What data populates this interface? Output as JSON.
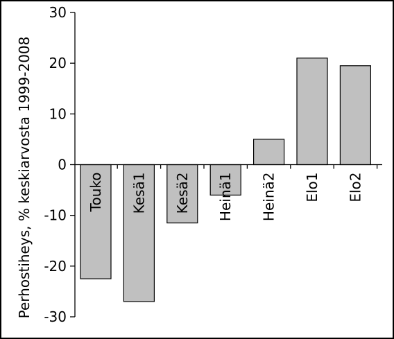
{
  "chart_data": {
    "type": "bar",
    "title": "",
    "xlabel": "",
    "ylabel": "Perhostiheys, % keskiarvosta 1999-2008",
    "categories": [
      "Touko",
      "Kesä1",
      "Kesä2",
      "Heinä1",
      "Heinä2",
      "Elo1",
      "Elo2"
    ],
    "values": [
      -22.5,
      -27,
      -11.5,
      -6,
      5,
      21,
      19.5
    ],
    "ylim": [
      -30,
      30
    ],
    "yticks": [
      -30,
      -20,
      -10,
      0,
      10,
      20,
      30
    ],
    "yticks_labels": [
      "-30",
      "-20",
      "-10",
      "0",
      "10",
      "20",
      "30"
    ],
    "grid": false,
    "legend": "none",
    "colors": {
      "bar_fill": "#c0c0c0",
      "bar_stroke": "#000000",
      "axis": "#000000"
    }
  }
}
